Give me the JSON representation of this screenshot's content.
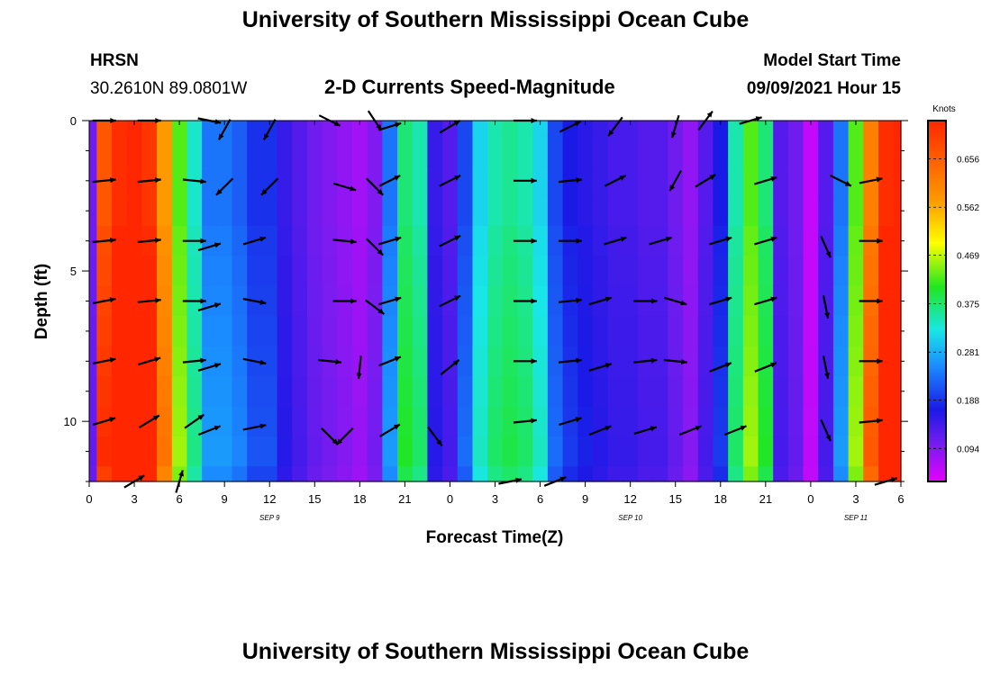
{
  "title_top": "University of Southern Mississippi Ocean Cube",
  "title_bottom": "University of Southern Mississippi Ocean Cube",
  "station": {
    "name": "HRSN",
    "coords": "30.2610N  89.0801W"
  },
  "model": {
    "label": "Model Start Time",
    "value": "09/09/2021 Hour 15"
  },
  "colors": {
    "magenta": "#e600ff",
    "purple": "#7a1cf0",
    "blue": "#1a1ae6",
    "cyan": "#19e6e6",
    "green": "#21e61f",
    "yellow": "#ffff00",
    "orange": "#ff9900",
    "red": "#ff2600",
    "arrow": "#000000"
  },
  "chart_data": {
    "type": "heatmap",
    "title": "2-D Currents Speed-Magnitude",
    "xlabel": "Forecast Time(Z)",
    "ylabel": "Depth (ft)",
    "units": "Knots",
    "x_ticks": [
      "0",
      "3",
      "6",
      "9",
      "12",
      "15",
      "18",
      "21",
      "0",
      "3",
      "6",
      "9",
      "12",
      "15",
      "18",
      "21",
      "0",
      "3",
      "6"
    ],
    "date_labels": [
      {
        "text": "SEP 9",
        "hour": 12
      },
      {
        "text": "SEP 10",
        "hour": 36
      },
      {
        "text": "SEP 11",
        "hour": 51
      }
    ],
    "xlim": [
      0,
      54
    ],
    "y_ticks": [
      "0",
      "5",
      "10"
    ],
    "y_tick_values": [
      0,
      5,
      10
    ],
    "ylim": [
      0,
      12
    ],
    "colorbar_ticks": [
      "0.656",
      "0.562",
      "0.469",
      "0.375",
      "0.281",
      "0.188",
      "0.094"
    ],
    "colorbar_tick_values": [
      0.656,
      0.562,
      0.469,
      0.375,
      0.281,
      0.188,
      0.094
    ],
    "colorbar_range": [
      0.03,
      0.73
    ],
    "hours": [
      0,
      1,
      2,
      3,
      4,
      5,
      6,
      7,
      8,
      9,
      10,
      11,
      12,
      13,
      14,
      15,
      16,
      17,
      18,
      19,
      20,
      21,
      22,
      23,
      24,
      25,
      26,
      27,
      28,
      29,
      30,
      31,
      32,
      33,
      34,
      35,
      36,
      37,
      38,
      39,
      40,
      41,
      42,
      43,
      44,
      45,
      46,
      47,
      48,
      49,
      50,
      51,
      52,
      53,
      54
    ],
    "surface_speed": [
      0.1,
      0.6,
      0.65,
      0.66,
      0.64,
      0.52,
      0.35,
      0.27,
      0.2,
      0.2,
      0.19,
      0.17,
      0.17,
      0.14,
      0.12,
      0.1,
      0.09,
      0.08,
      0.07,
      0.09,
      0.2,
      0.3,
      0.28,
      0.14,
      0.12,
      0.18,
      0.25,
      0.28,
      0.29,
      0.28,
      0.25,
      0.18,
      0.16,
      0.15,
      0.14,
      0.13,
      0.13,
      0.12,
      0.12,
      0.1,
      0.08,
      0.12,
      0.16,
      0.28,
      0.35,
      0.3,
      0.12,
      0.1,
      0.05,
      0.12,
      0.2,
      0.35,
      0.55,
      0.65,
      0.66
    ],
    "depth_factor": [
      1.0,
      1.0,
      1.0,
      1.0,
      1.02,
      1.03,
      1.04,
      1.05,
      1.06,
      1.07,
      1.08,
      1.09,
      1.05
    ],
    "vectors": [
      {
        "hour": 1,
        "depth": 0,
        "u": 1,
        "v": 0
      },
      {
        "hour": 4,
        "depth": 0,
        "u": 1,
        "v": 0
      },
      {
        "hour": 8,
        "depth": 0,
        "u": 1,
        "v": -0.2
      },
      {
        "hour": 9,
        "depth": 0.3,
        "u": -0.5,
        "v": -0.9
      },
      {
        "hour": 12,
        "depth": 0.3,
        "u": -0.5,
        "v": -0.9
      },
      {
        "hour": 16,
        "depth": 0,
        "u": 1,
        "v": -0.5
      },
      {
        "hour": 19,
        "depth": 0,
        "u": 0.6,
        "v": -0.9
      },
      {
        "hour": 20,
        "depth": 0.2,
        "u": 1,
        "v": 0.3
      },
      {
        "hour": 24,
        "depth": 0.2,
        "u": 1,
        "v": 0.6
      },
      {
        "hour": 29,
        "depth": 0,
        "u": 1,
        "v": 0
      },
      {
        "hour": 32,
        "depth": 0.2,
        "u": 1,
        "v": 0.5
      },
      {
        "hour": 35,
        "depth": 0.2,
        "u": -0.6,
        "v": -0.8
      },
      {
        "hour": 39,
        "depth": 0.2,
        "u": -0.3,
        "v": -1
      },
      {
        "hour": 41,
        "depth": 0,
        "u": 0.6,
        "v": 0.8
      },
      {
        "hour": 44,
        "depth": 0,
        "u": 1,
        "v": 0.3
      },
      {
        "hour": 1,
        "depth": 2,
        "u": 1,
        "v": 0.1
      },
      {
        "hour": 4,
        "depth": 2,
        "u": 1,
        "v": 0.1
      },
      {
        "hour": 7,
        "depth": 2,
        "u": 1,
        "v": -0.1
      },
      {
        "hour": 9,
        "depth": 2.2,
        "u": -0.7,
        "v": -0.7
      },
      {
        "hour": 12,
        "depth": 2.2,
        "u": -0.7,
        "v": -0.7
      },
      {
        "hour": 17,
        "depth": 2.2,
        "u": 1,
        "v": -0.3
      },
      {
        "hour": 19,
        "depth": 2.2,
        "u": 0.7,
        "v": -0.7
      },
      {
        "hour": 20,
        "depth": 2,
        "u": 1,
        "v": 0.5
      },
      {
        "hour": 24,
        "depth": 2,
        "u": 1,
        "v": 0.5
      },
      {
        "hour": 29,
        "depth": 2,
        "u": 1,
        "v": 0
      },
      {
        "hour": 32,
        "depth": 2,
        "u": 1,
        "v": 0.1
      },
      {
        "hour": 35,
        "depth": 2,
        "u": 1,
        "v": 0.5
      },
      {
        "hour": 39,
        "depth": 2,
        "u": -0.5,
        "v": -0.9
      },
      {
        "hour": 41,
        "depth": 2,
        "u": 1,
        "v": 0.6
      },
      {
        "hour": 45,
        "depth": 2,
        "u": 1,
        "v": 0.3
      },
      {
        "hour": 50,
        "depth": 2,
        "u": 1,
        "v": -0.5
      },
      {
        "hour": 52,
        "depth": 2,
        "u": 1,
        "v": 0.2
      },
      {
        "hour": 1,
        "depth": 4,
        "u": 1,
        "v": 0.1
      },
      {
        "hour": 4,
        "depth": 4,
        "u": 1,
        "v": 0.1
      },
      {
        "hour": 7,
        "depth": 4,
        "u": 1,
        "v": 0
      },
      {
        "hour": 8,
        "depth": 4.2,
        "u": 1,
        "v": 0.3
      },
      {
        "hour": 11,
        "depth": 4,
        "u": 1,
        "v": 0.3
      },
      {
        "hour": 17,
        "depth": 4,
        "u": 1,
        "v": -0.1
      },
      {
        "hour": 19,
        "depth": 4.2,
        "u": 0.7,
        "v": -0.7
      },
      {
        "hour": 20,
        "depth": 4,
        "u": 1,
        "v": 0.3
      },
      {
        "hour": 24,
        "depth": 4,
        "u": 1,
        "v": 0.5
      },
      {
        "hour": 29,
        "depth": 4,
        "u": 1,
        "v": 0
      },
      {
        "hour": 32,
        "depth": 4,
        "u": 1,
        "v": 0
      },
      {
        "hour": 35,
        "depth": 4,
        "u": 1,
        "v": 0.3
      },
      {
        "hour": 38,
        "depth": 4,
        "u": 1,
        "v": 0.3
      },
      {
        "hour": 42,
        "depth": 4,
        "u": 1,
        "v": 0.3
      },
      {
        "hour": 45,
        "depth": 4,
        "u": 1,
        "v": 0.3
      },
      {
        "hour": 49,
        "depth": 4.2,
        "u": 0.4,
        "v": -0.9
      },
      {
        "hour": 52,
        "depth": 4,
        "u": 1,
        "v": 0
      },
      {
        "hour": 1,
        "depth": 6,
        "u": 1,
        "v": 0.2
      },
      {
        "hour": 4,
        "depth": 6,
        "u": 1,
        "v": 0.1
      },
      {
        "hour": 7,
        "depth": 6,
        "u": 1,
        "v": 0
      },
      {
        "hour": 8,
        "depth": 6.2,
        "u": 1,
        "v": 0.3
      },
      {
        "hour": 11,
        "depth": 6,
        "u": 1,
        "v": -0.2
      },
      {
        "hour": 17,
        "depth": 6,
        "u": 1,
        "v": 0
      },
      {
        "hour": 19,
        "depth": 6.2,
        "u": 0.8,
        "v": -0.6
      },
      {
        "hour": 20,
        "depth": 6,
        "u": 1,
        "v": 0.3
      },
      {
        "hour": 24,
        "depth": 6,
        "u": 1,
        "v": 0.5
      },
      {
        "hour": 29,
        "depth": 6,
        "u": 1,
        "v": 0
      },
      {
        "hour": 32,
        "depth": 6,
        "u": 1,
        "v": 0.1
      },
      {
        "hour": 34,
        "depth": 6,
        "u": 1,
        "v": 0.3
      },
      {
        "hour": 37,
        "depth": 6,
        "u": 1,
        "v": 0
      },
      {
        "hour": 39,
        "depth": 6,
        "u": 1,
        "v": -0.3
      },
      {
        "hour": 42,
        "depth": 6,
        "u": 1,
        "v": 0.3
      },
      {
        "hour": 45,
        "depth": 6,
        "u": 1,
        "v": 0.3
      },
      {
        "hour": 49,
        "depth": 6.2,
        "u": 0.2,
        "v": -1
      },
      {
        "hour": 52,
        "depth": 6,
        "u": 1,
        "v": 0
      },
      {
        "hour": 1,
        "depth": 8,
        "u": 1,
        "v": 0.2
      },
      {
        "hour": 4,
        "depth": 8,
        "u": 1,
        "v": 0.3
      },
      {
        "hour": 7,
        "depth": 8,
        "u": 1,
        "v": 0.1
      },
      {
        "hour": 8,
        "depth": 8.2,
        "u": 1,
        "v": 0.3
      },
      {
        "hour": 11,
        "depth": 8,
        "u": 1,
        "v": -0.2
      },
      {
        "hour": 16,
        "depth": 8,
        "u": 1,
        "v": -0.1
      },
      {
        "hour": 18,
        "depth": 8.2,
        "u": -0.1,
        "v": -1
      },
      {
        "hour": 20,
        "depth": 8,
        "u": 1,
        "v": 0.4
      },
      {
        "hour": 24,
        "depth": 8.2,
        "u": 1,
        "v": 0.8
      },
      {
        "hour": 29,
        "depth": 8,
        "u": 1,
        "v": 0
      },
      {
        "hour": 32,
        "depth": 8,
        "u": 1,
        "v": 0.1
      },
      {
        "hour": 34,
        "depth": 8.2,
        "u": 1,
        "v": 0.3
      },
      {
        "hour": 37,
        "depth": 8,
        "u": 1,
        "v": 0.1
      },
      {
        "hour": 39,
        "depth": 8,
        "u": 1,
        "v": -0.1
      },
      {
        "hour": 42,
        "depth": 8.2,
        "u": 1,
        "v": 0.4
      },
      {
        "hour": 45,
        "depth": 8.2,
        "u": 1,
        "v": 0.4
      },
      {
        "hour": 49,
        "depth": 8.2,
        "u": 0.2,
        "v": -1
      },
      {
        "hour": 52,
        "depth": 8,
        "u": 1,
        "v": 0
      },
      {
        "hour": 1,
        "depth": 10,
        "u": 1,
        "v": 0.3
      },
      {
        "hour": 4,
        "depth": 10,
        "u": 1,
        "v": 0.6
      },
      {
        "hour": 7,
        "depth": 10,
        "u": 1,
        "v": 0.7
      },
      {
        "hour": 8,
        "depth": 10.3,
        "u": 1,
        "v": 0.4
      },
      {
        "hour": 11,
        "depth": 10.2,
        "u": 1,
        "v": 0.2
      },
      {
        "hour": 16,
        "depth": 10.5,
        "u": 0.7,
        "v": -0.7
      },
      {
        "hour": 17,
        "depth": 10.5,
        "u": -0.7,
        "v": -0.7
      },
      {
        "hour": 20,
        "depth": 10.3,
        "u": 1,
        "v": 0.6
      },
      {
        "hour": 23,
        "depth": 10.5,
        "u": 0.6,
        "v": -0.8
      },
      {
        "hour": 29,
        "depth": 10,
        "u": 1,
        "v": 0.1
      },
      {
        "hour": 32,
        "depth": 10,
        "u": 1,
        "v": 0.3
      },
      {
        "hour": 34,
        "depth": 10.3,
        "u": 1,
        "v": 0.4
      },
      {
        "hour": 37,
        "depth": 10.3,
        "u": 1,
        "v": 0.3
      },
      {
        "hour": 40,
        "depth": 10.3,
        "u": 1,
        "v": 0.4
      },
      {
        "hour": 43,
        "depth": 10.3,
        "u": 1,
        "v": 0.4
      },
      {
        "hour": 49,
        "depth": 10.3,
        "u": 0.4,
        "v": -0.9
      },
      {
        "hour": 52,
        "depth": 10,
        "u": 1,
        "v": 0.1
      },
      {
        "hour": 3,
        "depth": 12,
        "u": 1,
        "v": 0.6
      },
      {
        "hour": 6,
        "depth": 12,
        "u": 0.3,
        "v": 1
      },
      {
        "hour": 28,
        "depth": 12,
        "u": 1,
        "v": 0.2
      },
      {
        "hour": 31,
        "depth": 12,
        "u": 1,
        "v": 0.4
      },
      {
        "hour": 53,
        "depth": 12,
        "u": 1,
        "v": 0.3
      }
    ]
  }
}
